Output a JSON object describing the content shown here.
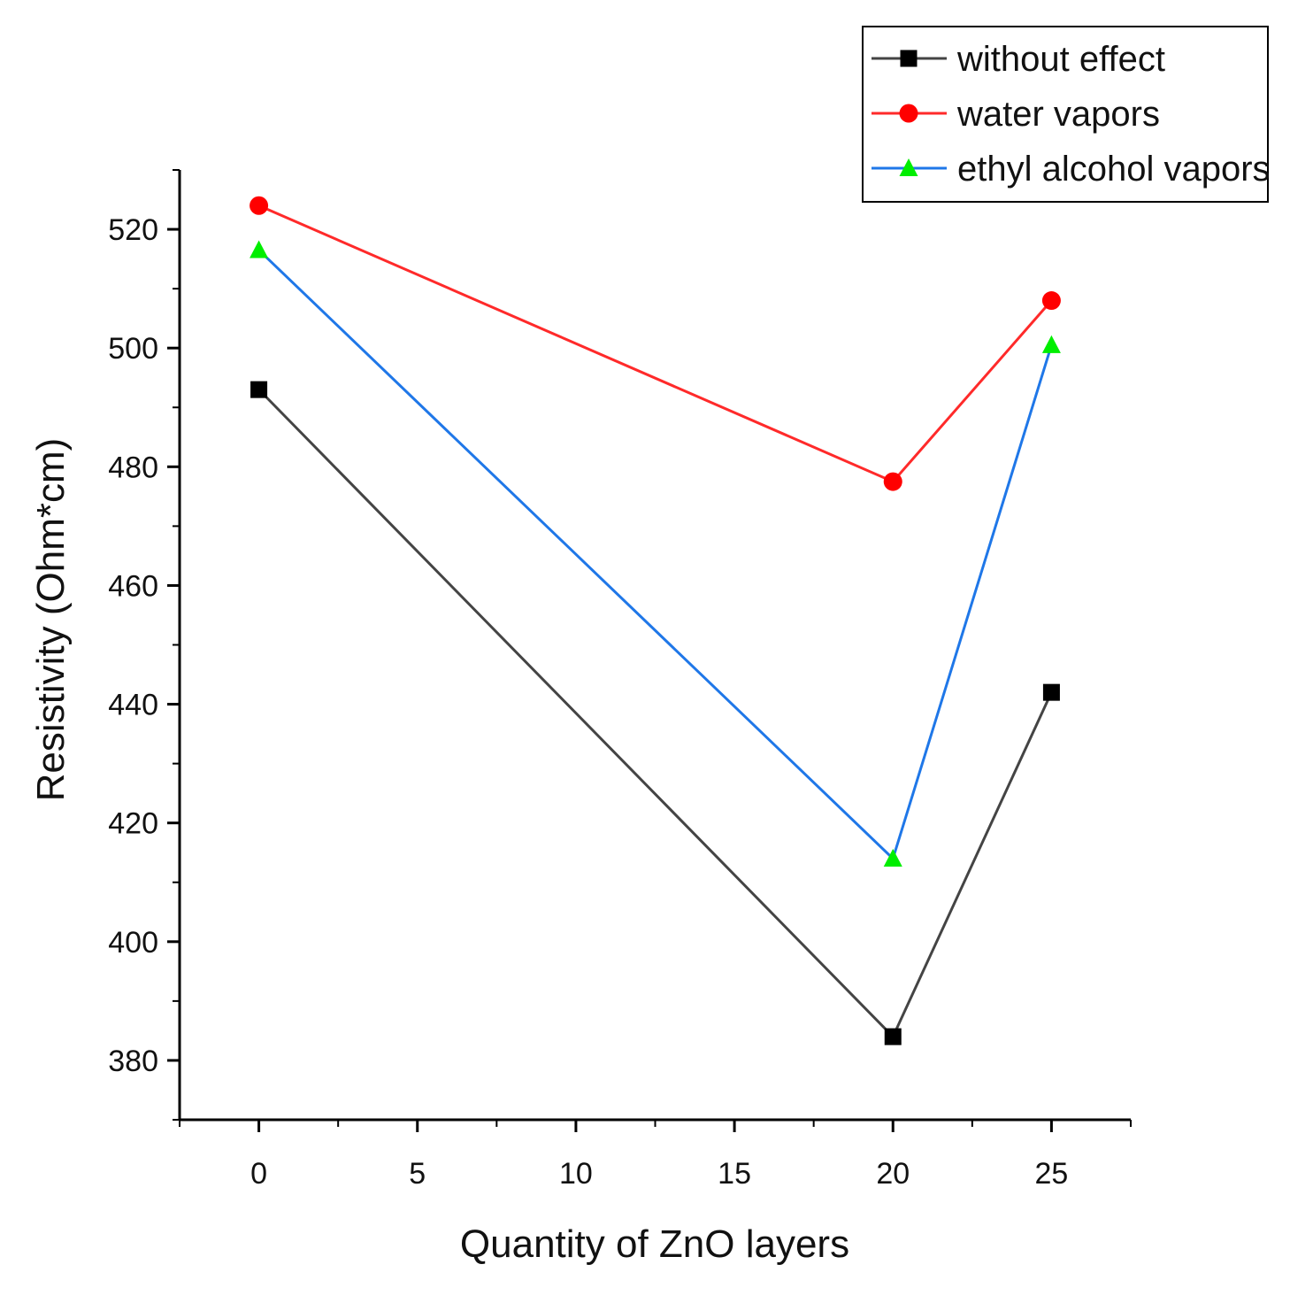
{
  "chart_data": {
    "type": "line",
    "title": "",
    "xlabel": "Quantity of ZnO layers",
    "ylabel": "Resistivity (Ohm*cm)",
    "x": [
      0,
      20,
      25
    ],
    "xlim": [
      -2.5,
      27.5
    ],
    "ylim": [
      370,
      530
    ],
    "xticks": [
      0,
      5,
      10,
      15,
      20,
      25
    ],
    "yticks": [
      380,
      400,
      420,
      440,
      460,
      480,
      500,
      520
    ],
    "legend_position": "top-right",
    "series": [
      {
        "name": "without effect",
        "values": [
          493,
          384,
          442
        ],
        "color": "#444444",
        "marker_color": "#000000",
        "marker": "square"
      },
      {
        "name": "water vapors",
        "values": [
          524,
          477.5,
          508
        ],
        "color": "#ff2a2a",
        "marker_color": "#ff0000",
        "marker": "circle"
      },
      {
        "name": "ethyl alcohol vapors",
        "values": [
          516.5,
          414,
          500.5
        ],
        "color": "#1f77e8",
        "marker_color": "#00ee00",
        "marker": "triangle"
      }
    ]
  }
}
